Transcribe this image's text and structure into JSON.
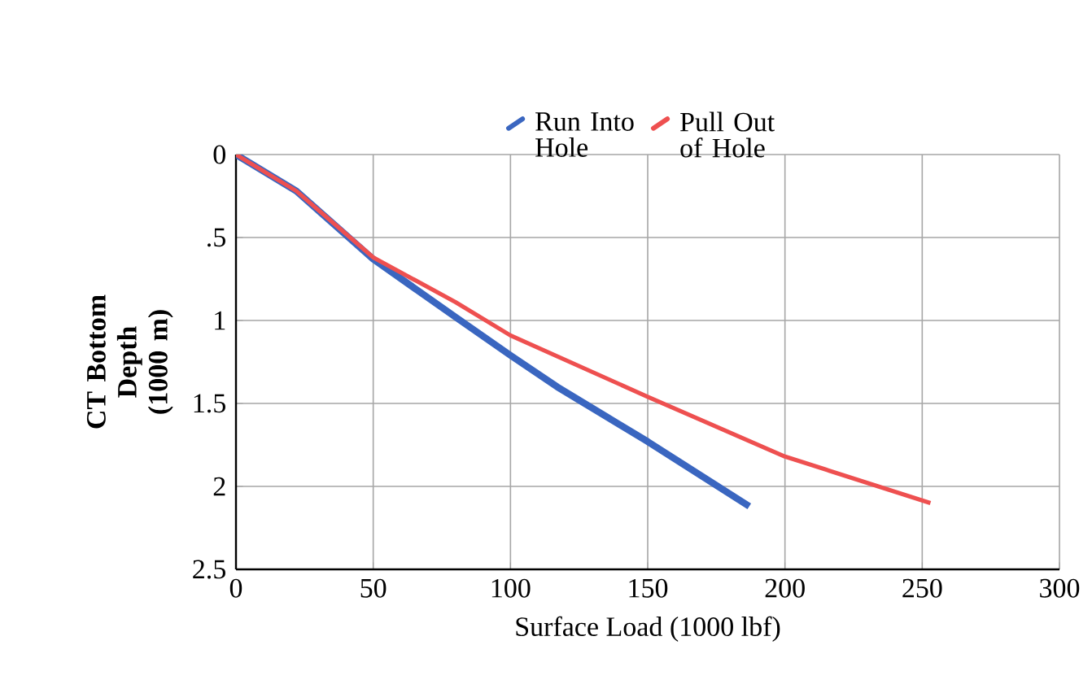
{
  "chart_data": {
    "type": "line",
    "xlabel": "Surface Load (1000 lbf)",
    "ylabel": "CT Bottom Depth (1000 m)",
    "series": [
      {
        "name": "Run Into Hole",
        "color": "#3a66c0",
        "x": [
          0,
          22,
          50,
          80,
          100,
          117,
          150,
          187
        ],
        "values": [
          0,
          0.22,
          0.63,
          0.98,
          1.21,
          1.4,
          1.73,
          2.12
        ]
      },
      {
        "name": "Pull Out of Hole",
        "color": "#ee5050",
        "x": [
          0,
          22,
          50,
          80,
          100,
          150,
          200,
          253
        ],
        "values": [
          0,
          0.22,
          0.62,
          0.89,
          1.09,
          1.46,
          1.82,
          2.1
        ]
      }
    ],
    "xlim": [
      0,
      300
    ],
    "ylim": [
      2.5,
      0
    ],
    "xticks": [
      0,
      50,
      100,
      150,
      200,
      250,
      300
    ],
    "yticks": [
      0,
      {
        "value": 0.5,
        "label": ".5"
      },
      1,
      1.5,
      2,
      2.5
    ],
    "grid": true,
    "legend": "top",
    "marker": "none",
    "line_style": "solid"
  }
}
